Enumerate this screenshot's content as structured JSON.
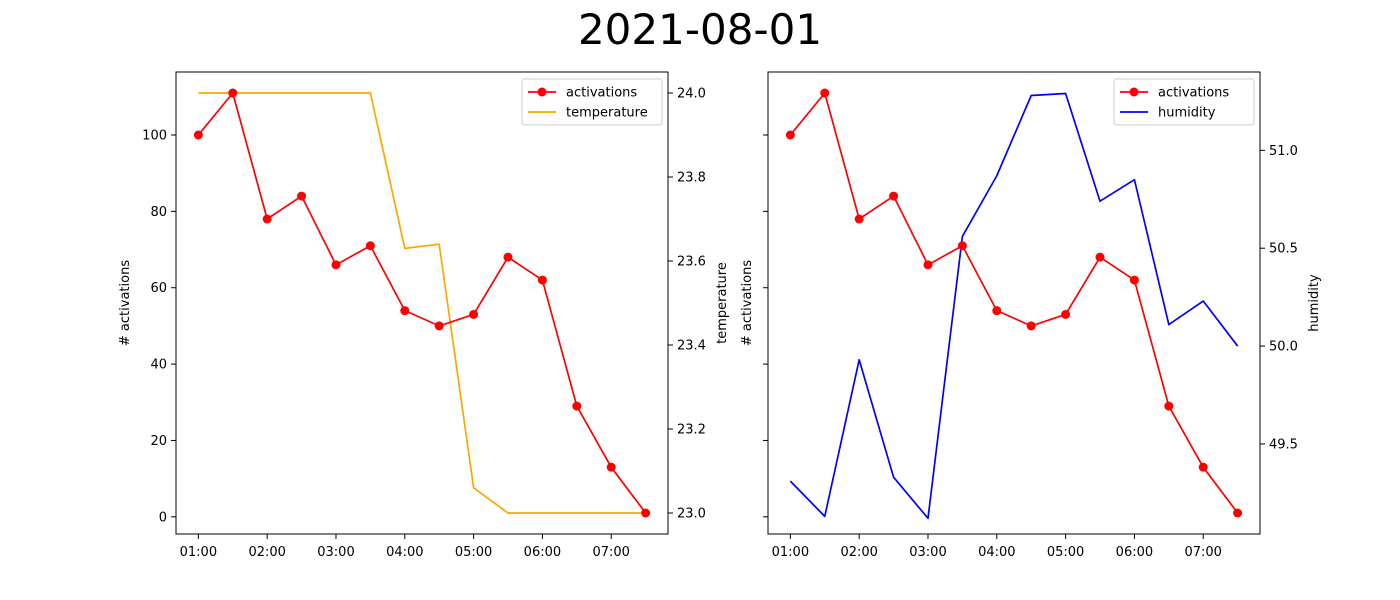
{
  "figure": {
    "title": "2021-08-01"
  },
  "colors": {
    "activations": "#ff0000",
    "temperature": "#ffa500",
    "humidity": "#0000ff",
    "axis": "#000000"
  },
  "chart_data": [
    {
      "type": "line",
      "x": [
        "01:00",
        "01:30",
        "02:00",
        "02:30",
        "03:00",
        "03:30",
        "04:00",
        "04:30",
        "05:00",
        "05:30",
        "06:00",
        "06:30",
        "07:00",
        "07:30"
      ],
      "xticks": [
        "01:00",
        "02:00",
        "03:00",
        "04:00",
        "05:00",
        "06:00",
        "07:00"
      ],
      "ylabel": "# activations",
      "ylim": [
        -4.5,
        116.5
      ],
      "yticks": [
        0,
        20,
        40,
        60,
        80,
        100
      ],
      "y2label": "temperature",
      "y2lim": [
        22.95,
        24.05
      ],
      "y2ticks": [
        "23.0",
        "23.2",
        "23.4",
        "23.6",
        "23.8",
        "24.0"
      ],
      "legend_position": "top-right",
      "grid": false,
      "series": [
        {
          "name": "activations",
          "axis": "left",
          "marker": "circle",
          "values": [
            100,
            111,
            78,
            84,
            66,
            71,
            54,
            50,
            53,
            68,
            62,
            29,
            13,
            1
          ]
        },
        {
          "name": "temperature",
          "axis": "right",
          "marker": "none",
          "values": [
            24.0,
            24.0,
            24.0,
            24.0,
            24.0,
            24.0,
            23.63,
            23.64,
            23.06,
            23.0,
            23.0,
            23.0,
            23.0,
            23.0
          ]
        }
      ]
    },
    {
      "type": "line",
      "x": [
        "01:00",
        "01:30",
        "02:00",
        "02:30",
        "03:00",
        "03:30",
        "04:00",
        "04:30",
        "05:00",
        "05:30",
        "06:00",
        "06:30",
        "07:00",
        "07:30"
      ],
      "xticks": [
        "01:00",
        "02:00",
        "03:00",
        "04:00",
        "05:00",
        "06:00",
        "07:00"
      ],
      "ylabel": "# activations",
      "ylim": [
        -4.5,
        116.5
      ],
      "yticks": [
        0,
        20,
        40,
        60,
        80,
        100
      ],
      "show_left_ticklabels": false,
      "y2label": "humidity",
      "y2lim": [
        49.04,
        51.4
      ],
      "y2ticks": [
        "49.5",
        "50.0",
        "50.5",
        "51.0"
      ],
      "legend_position": "top-right",
      "grid": false,
      "series": [
        {
          "name": "activations",
          "axis": "left",
          "marker": "circle",
          "values": [
            100,
            111,
            78,
            84,
            66,
            71,
            54,
            50,
            53,
            68,
            62,
            29,
            13,
            1
          ]
        },
        {
          "name": "humidity",
          "axis": "right",
          "marker": "none",
          "values": [
            49.31,
            49.13,
            49.93,
            49.33,
            49.12,
            50.56,
            50.87,
            51.28,
            51.29,
            50.74,
            50.85,
            50.11,
            50.23,
            50.0
          ]
        }
      ]
    }
  ]
}
